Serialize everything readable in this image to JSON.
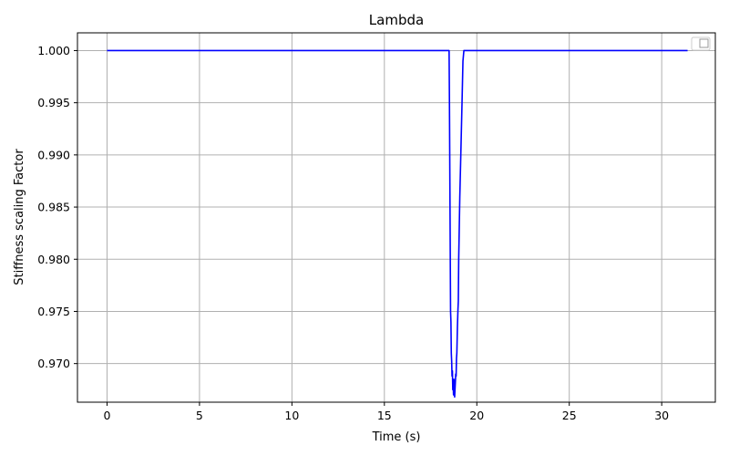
{
  "chart_data": {
    "type": "line",
    "title": "Lambda",
    "xlabel": "Time (s)",
    "ylabel": "Stiffness scaling Factor",
    "xlim": [
      -1.6,
      32.9
    ],
    "ylim": [
      0.9663,
      1.0017
    ],
    "xticks": [
      0,
      5,
      10,
      15,
      20,
      25,
      30
    ],
    "yticks": [
      0.97,
      0.975,
      0.98,
      0.985,
      0.99,
      0.995,
      1.0
    ],
    "ytick_labels": [
      "0.970",
      "0.975",
      "0.980",
      "0.985",
      "0.990",
      "0.995",
      "1.000"
    ],
    "grid": true,
    "legend": {
      "location": "upper-right",
      "entries": []
    },
    "series": [
      {
        "name": "Lambda",
        "color": "#0000ff",
        "x": [
          0,
          18.5,
          18.52,
          18.55,
          18.58,
          18.6,
          18.62,
          18.64,
          18.66,
          18.68,
          18.7,
          18.72,
          18.74,
          18.76,
          18.78,
          18.8,
          18.82,
          18.84,
          18.86,
          18.88,
          18.9,
          18.92,
          18.95,
          18.98,
          19.0,
          19.02,
          19.05,
          19.08,
          19.12,
          19.16,
          19.2,
          19.25,
          19.3,
          19.35,
          19.4,
          31.4
        ],
        "values": [
          1.0,
          1.0,
          0.995,
          0.985,
          0.975,
          0.974,
          0.971,
          0.9702,
          0.9688,
          0.9693,
          0.9675,
          0.968,
          0.967,
          0.9685,
          0.9678,
          0.9668,
          0.9675,
          0.9682,
          0.969,
          0.9688,
          0.9705,
          0.971,
          0.9735,
          0.9752,
          0.976,
          0.98,
          0.983,
          0.986,
          0.989,
          0.992,
          0.995,
          0.999,
          1.0,
          1.0,
          1.0,
          1.0
        ]
      }
    ]
  }
}
